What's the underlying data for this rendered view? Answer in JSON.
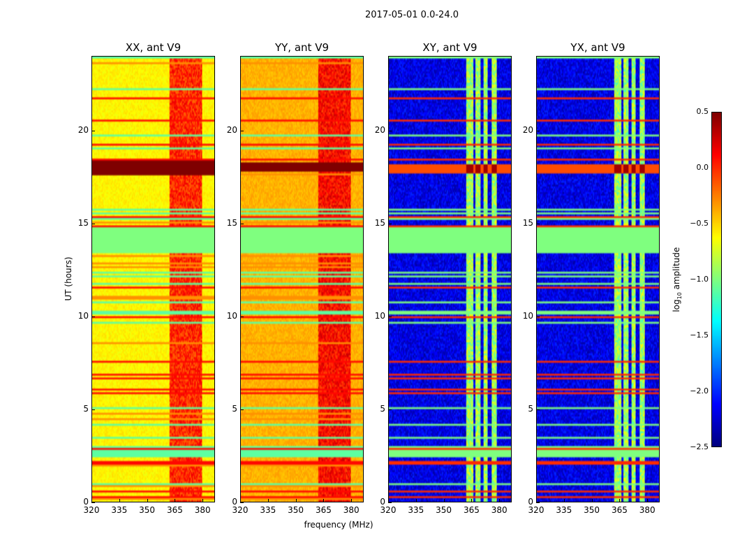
{
  "figure_title": "2017-05-01 0.0-24.0",
  "chart_data": {
    "type": "heatmap",
    "title": "2017-05-01 0.0-24.0",
    "xlabel": "frequency (MHz)",
    "ylabel": "UT (hours)",
    "xlim": [
      320,
      386.7
    ],
    "ylim": [
      0,
      24
    ],
    "xticks": [
      "320",
      "335",
      "350",
      "365",
      "380"
    ],
    "xtick_values": [
      320,
      335,
      350,
      365,
      380
    ],
    "yticks": [
      "0",
      "5",
      "10",
      "15",
      "20"
    ],
    "ytick_values": [
      0,
      5,
      10,
      15,
      20
    ],
    "colormap": "jet",
    "colorbar": {
      "label_main": "log",
      "label_sub": "10",
      "label_rest": " amplitude",
      "range": [
        -2.5,
        0.5
      ],
      "ticks": [
        "0.5",
        "0.0",
        "−0.5",
        "−1.0",
        "−1.5",
        "−2.0",
        "−2.5"
      ],
      "tick_values": [
        0.5,
        0.0,
        -0.5,
        -1.0,
        -1.5,
        -2.0,
        -2.5
      ]
    },
    "panels": [
      {
        "title": "XX, ant V9",
        "base_level": -0.6,
        "rfi_band_level": 0.0,
        "saturated_hours": [
          17.6,
          18.4
        ],
        "saturated_level": 0.5
      },
      {
        "title": "YY, ant V9",
        "base_level": -0.4,
        "rfi_band_level": 0.1,
        "saturated_hours": [
          17.8,
          18.3
        ],
        "saturated_level": 0.5
      },
      {
        "title": "XY, ant V9",
        "base_level": -2.2,
        "rfi_band_level": -0.9,
        "saturated_hours": [
          17.7,
          18.2
        ],
        "saturated_level": 0.3
      },
      {
        "title": "YX, ant V9",
        "base_level": -2.2,
        "rfi_band_level": -0.9,
        "saturated_hours": [
          17.7,
          18.2
        ],
        "saturated_level": 0.3
      }
    ],
    "rfi_band_mhz": [
      362,
      380
    ],
    "rfi_columns_mhz": [
      [
        362,
        366
      ],
      [
        367,
        370
      ],
      [
        371.5,
        374
      ],
      [
        376,
        379
      ]
    ],
    "flagged_hours": [
      13.4,
      14.8
    ],
    "flagged_level": -1.0
  }
}
